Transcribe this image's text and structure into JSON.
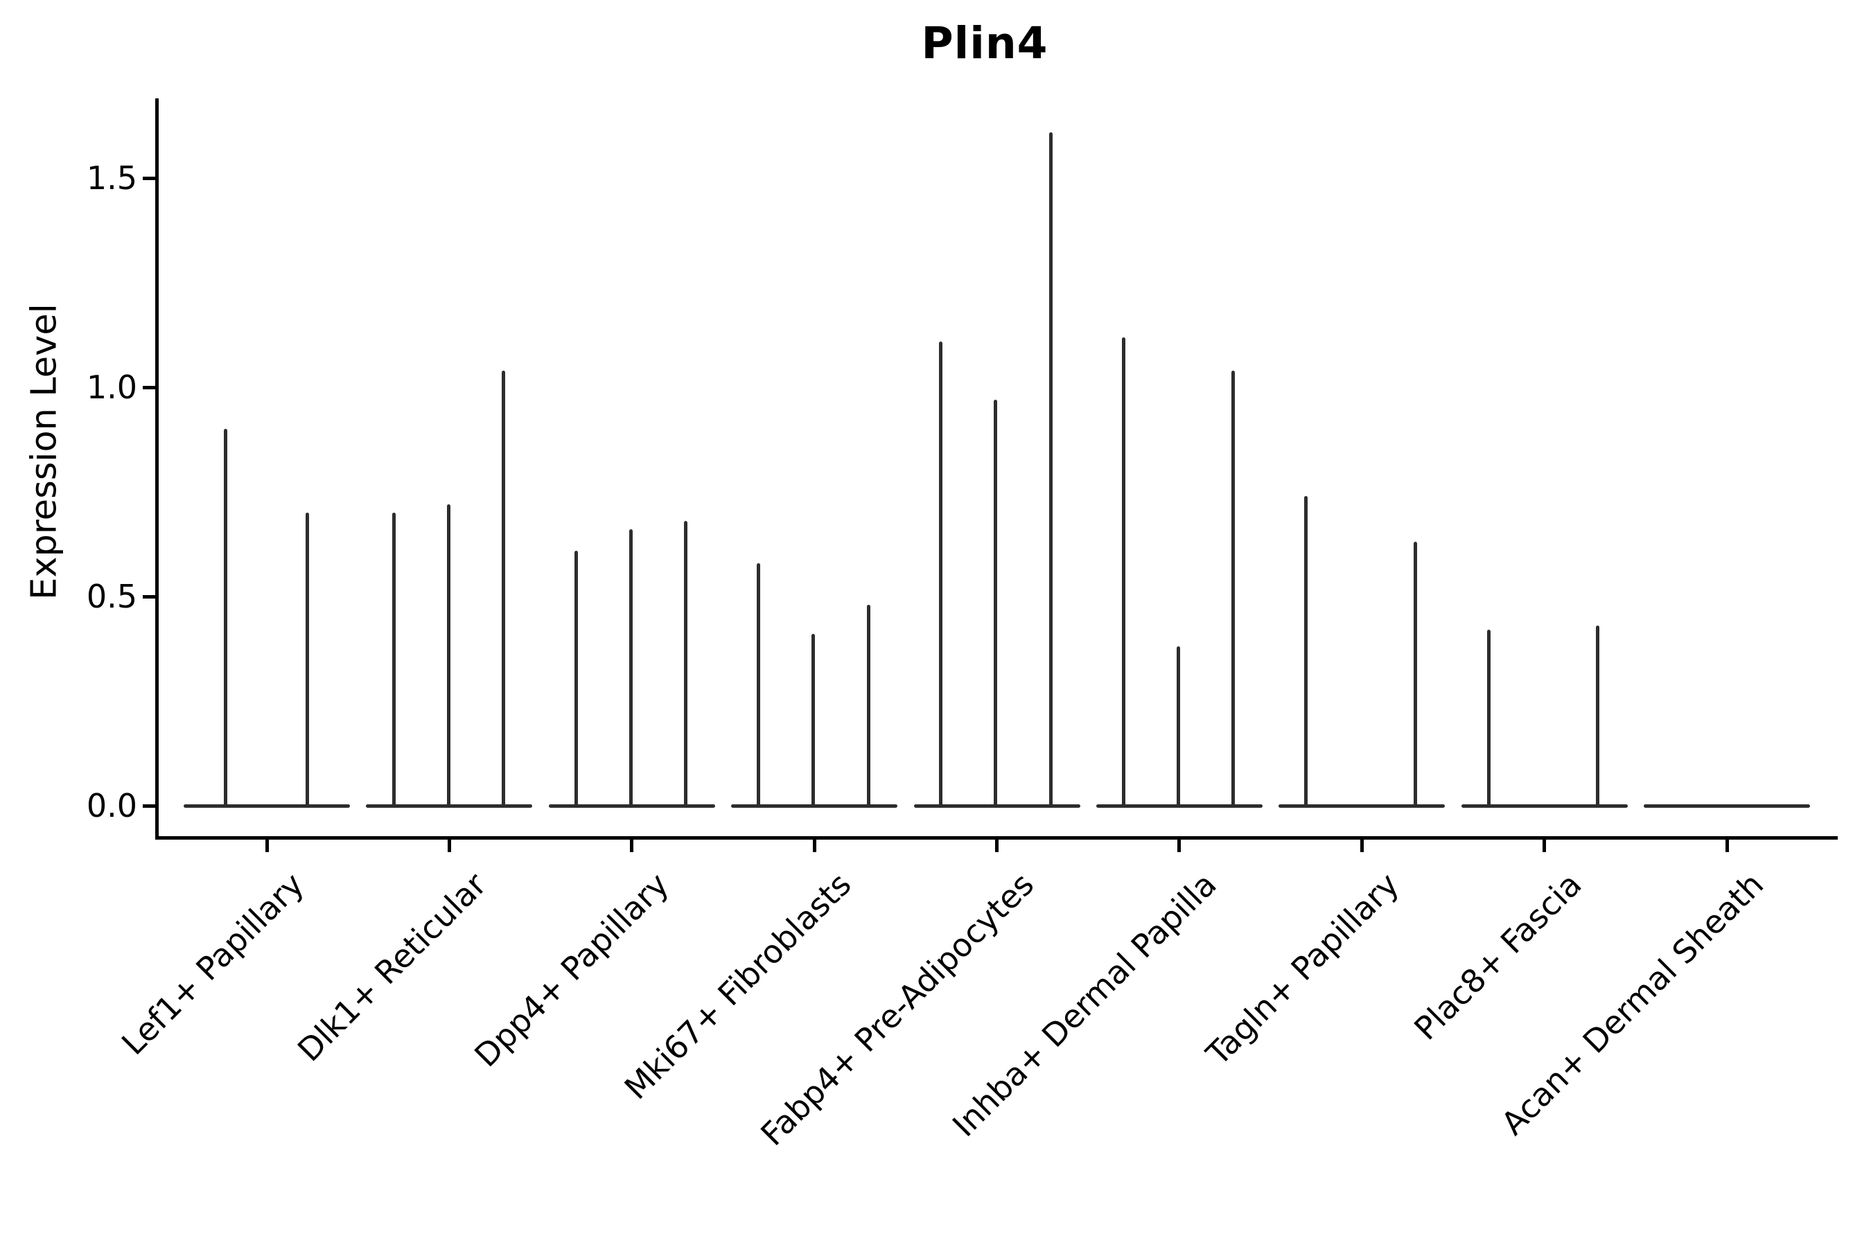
{
  "title": "Plin4",
  "y_axis": {
    "label": "Expression Level",
    "tick_labels": [
      "0.0",
      "0.5",
      "1.0",
      "1.5"
    ]
  },
  "colors": {
    "ink": "#000000",
    "violin_line": "#2d2d2d",
    "background": "#ffffff"
  },
  "chart_data": {
    "type": "violin",
    "title": "Plin4",
    "xlabel": "",
    "ylabel": "Expression Level",
    "ylim": [
      -0.08,
      1.69
    ],
    "yticks": [
      0,
      0.5,
      1.0,
      1.5
    ],
    "grid": false,
    "legend": "none",
    "style": "split violin plot (Seurat/scanpy-like); each category shows flat zero-density bodies with thin vertical density spikes reaching the maximum expression value",
    "categories": [
      "Lef1+ Papillary",
      "Dlk1+ Reticular",
      "Dpp4+ Papillary",
      "Mki67+ Fibroblasts",
      "Fabp4+ Pre-Adipocytes",
      "Inhba+ Dermal Papilla",
      "Tagln+ Papillary",
      "Plac8+ Fascia",
      "Acan+ Dermal Sheath"
    ],
    "groups": [
      {
        "category": "Lef1+ Papillary",
        "violins": [
          {
            "offset": -0.227,
            "peak": 0.9
          },
          {
            "offset": 0.224,
            "peak": 0.7
          }
        ]
      },
      {
        "category": "Dlk1+ Reticular",
        "violins": [
          {
            "offset": -0.302,
            "peak": 0.7
          },
          {
            "offset": -0.004,
            "peak": 0.72
          },
          {
            "offset": 0.298,
            "peak": 1.04
          }
        ]
      },
      {
        "category": "Dpp4+ Papillary",
        "violins": [
          {
            "offset": -0.303,
            "peak": 0.61
          },
          {
            "offset": -0.003,
            "peak": 0.66
          },
          {
            "offset": 0.295,
            "peak": 0.68
          }
        ]
      },
      {
        "category": "Mki67+ Fibroblasts",
        "violins": [
          {
            "offset": -0.305,
            "peak": 0.58
          },
          {
            "offset": -0.005,
            "peak": 0.41
          },
          {
            "offset": 0.296,
            "peak": 0.48
          }
        ]
      },
      {
        "category": "Fabp4+ Pre-Adipocytes",
        "violins": [
          {
            "offset": -0.306,
            "peak": 1.11
          },
          {
            "offset": -0.006,
            "peak": 0.97
          },
          {
            "offset": 0.295,
            "peak": 1.61
          }
        ]
      },
      {
        "category": "Inhba+ Dermal Papilla",
        "violins": [
          {
            "offset": -0.305,
            "peak": 1.12
          },
          {
            "offset": -0.007,
            "peak": 0.38
          },
          {
            "offset": 0.293,
            "peak": 1.04
          }
        ]
      },
      {
        "category": "Tagln+ Papillary",
        "violins": [
          {
            "offset": -0.305,
            "peak": 0.74
          },
          {
            "offset": 0.292,
            "peak": 0.63
          }
        ]
      },
      {
        "category": "Plac8+ Fascia",
        "violins": [
          {
            "offset": -0.306,
            "peak": 0.42
          },
          {
            "offset": 0.293,
            "peak": 0.43
          }
        ]
      },
      {
        "category": "Acan+ Dermal Sheath",
        "violins": []
      }
    ]
  }
}
